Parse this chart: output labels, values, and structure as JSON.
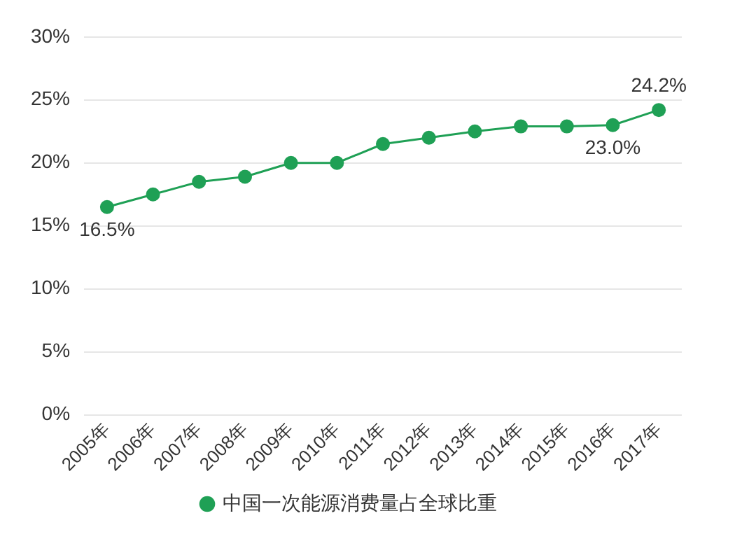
{
  "chart_data": {
    "type": "line",
    "categories": [
      "2005年",
      "2006年",
      "2007年",
      "2008年",
      "2009年",
      "2010年",
      "2011年",
      "2012年",
      "2013年",
      "2014年",
      "2015年",
      "2016年",
      "2017年"
    ],
    "series": [
      {
        "name": "中国一次能源消费量占全球比重",
        "color": "#1fa055",
        "values": [
          16.5,
          17.5,
          18.5,
          18.9,
          20.0,
          20.0,
          21.5,
          22.0,
          22.5,
          22.9,
          22.9,
          23.0,
          24.2
        ],
        "value_labels": [
          "16.5%",
          null,
          null,
          null,
          null,
          null,
          null,
          null,
          null,
          null,
          null,
          "23.0%",
          "24.2%"
        ]
      }
    ],
    "ylim": [
      0,
      30
    ],
    "yticks": [
      {
        "value": 0,
        "label": "0%"
      },
      {
        "value": 5,
        "label": "5%"
      },
      {
        "value": 10,
        "label": "10%"
      },
      {
        "value": 15,
        "label": "15%"
      },
      {
        "value": 20,
        "label": "20%"
      },
      {
        "value": 25,
        "label": "25%"
      },
      {
        "value": 30,
        "label": "30%"
      }
    ],
    "grid": "y",
    "legend": "bottom",
    "marker": "circle",
    "line_style": "solid"
  }
}
